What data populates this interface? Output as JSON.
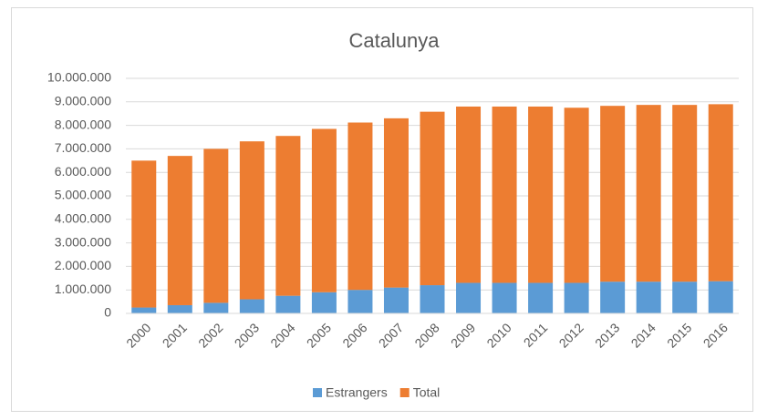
{
  "chart_data": {
    "type": "stacked_bar",
    "title": "Catalunya",
    "categories": [
      "2000",
      "2001",
      "2002",
      "2003",
      "2004",
      "2005",
      "2006",
      "2007",
      "2008",
      "2009",
      "2010",
      "2011",
      "2012",
      "2013",
      "2014",
      "2015",
      "2016"
    ],
    "series": [
      {
        "name": "Estrangers",
        "color": "#5b9bd5",
        "values": [
          250000,
          350000,
          450000,
          600000,
          750000,
          900000,
          1000000,
          1100000,
          1200000,
          1300000,
          1300000,
          1300000,
          1300000,
          1350000,
          1350000,
          1350000,
          1370000
        ]
      },
      {
        "name": "Total",
        "color": "#ed7d31",
        "values": [
          6250000,
          6350000,
          6550000,
          6720000,
          6800000,
          6950000,
          7120000,
          7200000,
          7380000,
          7500000,
          7500000,
          7500000,
          7450000,
          7480000,
          7520000,
          7520000,
          7530000
        ]
      }
    ],
    "ylim": [
      0,
      10000000
    ],
    "yticks": [
      0,
      {
        "value": 1000000,
        "label": "1.000.000"
      },
      {
        "value": 2000000,
        "label": "2.000.000"
      },
      {
        "value": 3000000,
        "label": "3.000.000"
      },
      {
        "value": 4000000,
        "label": "4.000.000"
      },
      {
        "value": 5000000,
        "label": "5.000.000"
      },
      {
        "value": 6000000,
        "label": "6.000.000"
      },
      {
        "value": 7000000,
        "label": "7.000.000"
      },
      {
        "value": 8000000,
        "label": "8.000.000"
      },
      {
        "value": 9000000,
        "label": "9.000.000"
      },
      {
        "value": 10000000,
        "label": "10.000.000"
      }
    ],
    "grid": true,
    "legend": "bottom"
  }
}
